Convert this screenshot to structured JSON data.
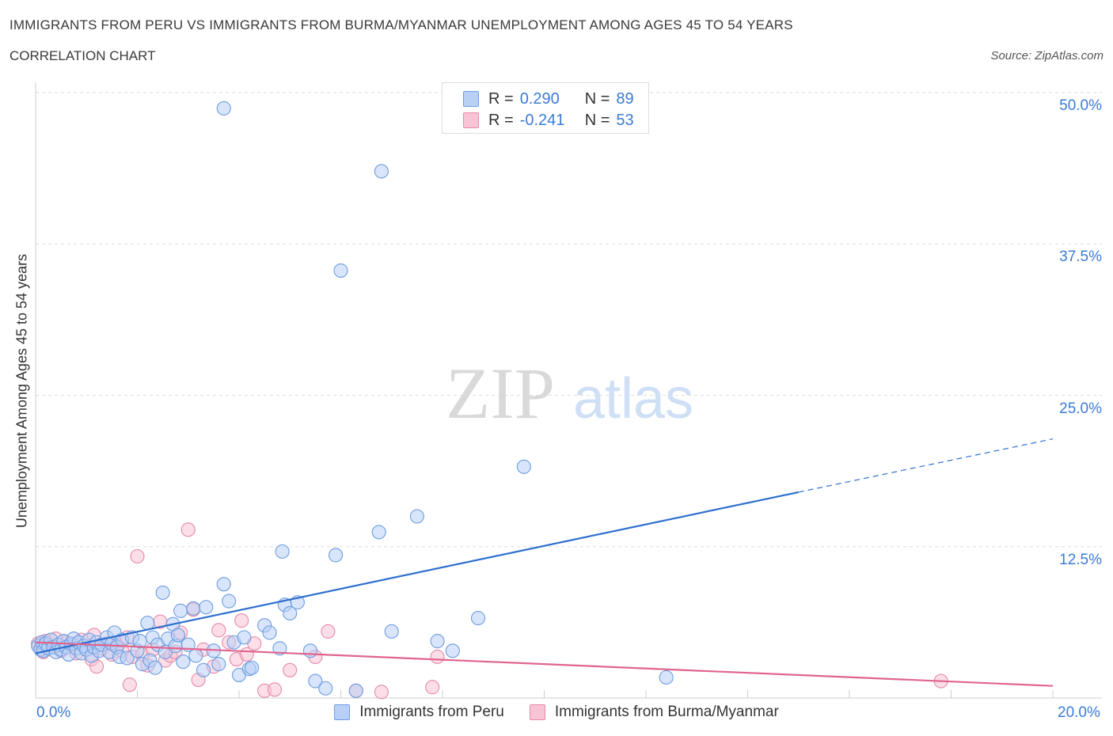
{
  "title": "IMMIGRANTS FROM PERU VS IMMIGRANTS FROM BURMA/MYANMAR UNEMPLOYMENT AMONG AGES 45 TO 54 YEARS",
  "subtitle": "CORRELATION CHART",
  "source": "Source: ZipAtlas.com",
  "watermark": {
    "zip": "ZIP",
    "atlas": "atlas"
  },
  "colors": {
    "peru_fill": "#b8d0f5",
    "peru_stroke": "#6d9de0",
    "peru_line": "#2e6fcf",
    "burma_fill": "#f8c3d4",
    "burma_stroke": "#e68aaa",
    "burma_line": "#e0648e",
    "axis_label": "#3a7bd5",
    "grid": "#dddddd"
  },
  "legend": [
    {
      "r_label": "R =",
      "r_value": "0.290",
      "n_label": "N =",
      "n_value": "89"
    },
    {
      "r_label": "R =",
      "r_value": "-0.241",
      "n_label": "N =",
      "n_value": "53"
    }
  ],
  "chart_data": {
    "type": "scatter",
    "xlabel": "",
    "ylabel": "Unemployment Among Ages 45 to 54 years",
    "xlim": [
      0,
      20
    ],
    "ylim": [
      0,
      50
    ],
    "x_tick_labels": [
      "0.0%",
      "20.0%"
    ],
    "y_ticks": [
      12.5,
      25.0,
      37.5,
      50.0
    ],
    "y_tick_labels": [
      "12.5%",
      "25.0%",
      "37.5%",
      "50.0%"
    ],
    "grid": true,
    "legend_position": "top-center",
    "series": [
      {
        "name": "Immigrants from Peru",
        "points": [
          [
            0.05,
            4.3
          ],
          [
            0.1,
            4.0
          ],
          [
            0.12,
            4.6
          ],
          [
            0.15,
            3.9
          ],
          [
            0.2,
            4.5
          ],
          [
            0.25,
            4.1
          ],
          [
            0.3,
            4.8
          ],
          [
            0.35,
            4.2
          ],
          [
            0.4,
            3.8
          ],
          [
            0.45,
            4.4
          ],
          [
            0.5,
            4.0
          ],
          [
            0.55,
            4.7
          ],
          [
            0.6,
            4.2
          ],
          [
            0.65,
            3.6
          ],
          [
            0.7,
            4.5
          ],
          [
            0.75,
            4.9
          ],
          [
            0.8,
            4.1
          ],
          [
            0.85,
            4.6
          ],
          [
            0.9,
            3.7
          ],
          [
            0.95,
            4.3
          ],
          [
            1.0,
            4.0
          ],
          [
            1.05,
            4.8
          ],
          [
            1.1,
            3.5
          ],
          [
            1.15,
            4.2
          ],
          [
            1.2,
            4.6
          ],
          [
            1.25,
            3.9
          ],
          [
            1.3,
            4.4
          ],
          [
            1.4,
            5.0
          ],
          [
            1.45,
            3.8
          ],
          [
            1.5,
            4.5
          ],
          [
            1.55,
            5.4
          ],
          [
            1.6,
            4.2
          ],
          [
            1.65,
            3.4
          ],
          [
            1.7,
            4.8
          ],
          [
            1.8,
            3.3
          ],
          [
            1.9,
            5.0
          ],
          [
            2.0,
            3.9
          ],
          [
            2.05,
            4.7
          ],
          [
            2.1,
            2.8
          ],
          [
            2.2,
            6.2
          ],
          [
            2.25,
            3.1
          ],
          [
            2.3,
            5.0
          ],
          [
            2.35,
            2.5
          ],
          [
            2.4,
            4.4
          ],
          [
            2.5,
            8.7
          ],
          [
            2.55,
            3.8
          ],
          [
            2.6,
            4.9
          ],
          [
            2.7,
            6.1
          ],
          [
            2.75,
            4.3
          ],
          [
            2.8,
            5.2
          ],
          [
            2.85,
            7.2
          ],
          [
            2.9,
            3.0
          ],
          [
            3.0,
            4.4
          ],
          [
            3.1,
            7.4
          ],
          [
            3.15,
            3.5
          ],
          [
            3.3,
            2.3
          ],
          [
            3.35,
            7.5
          ],
          [
            3.5,
            3.9
          ],
          [
            3.6,
            2.8
          ],
          [
            3.7,
            9.4
          ],
          [
            3.8,
            8.0
          ],
          [
            3.9,
            4.6
          ],
          [
            4.0,
            1.9
          ],
          [
            4.1,
            5.0
          ],
          [
            4.2,
            2.4
          ],
          [
            4.25,
            2.5
          ],
          [
            4.5,
            6.0
          ],
          [
            4.6,
            5.4
          ],
          [
            4.8,
            4.1
          ],
          [
            4.85,
            12.1
          ],
          [
            4.9,
            7.7
          ],
          [
            5.0,
            7.0
          ],
          [
            5.15,
            7.9
          ],
          [
            5.4,
            3.9
          ],
          [
            5.5,
            1.4
          ],
          [
            5.7,
            0.8
          ],
          [
            5.9,
            11.8
          ],
          [
            6.0,
            35.3
          ],
          [
            6.3,
            0.6
          ],
          [
            6.75,
            13.7
          ],
          [
            6.8,
            43.5
          ],
          [
            7.0,
            5.5
          ],
          [
            7.5,
            15.0
          ],
          [
            7.9,
            4.7
          ],
          [
            8.2,
            3.9
          ],
          [
            8.7,
            6.6
          ],
          [
            9.6,
            19.1
          ],
          [
            12.4,
            1.7
          ],
          [
            3.7,
            48.7
          ]
        ]
      },
      {
        "name": "Immigrants from Burma/Myanmar",
        "points": [
          [
            0.05,
            4.5
          ],
          [
            0.1,
            4.1
          ],
          [
            0.15,
            3.8
          ],
          [
            0.2,
            4.7
          ],
          [
            0.3,
            4.2
          ],
          [
            0.4,
            4.9
          ],
          [
            0.5,
            3.9
          ],
          [
            0.6,
            4.6
          ],
          [
            0.7,
            4.4
          ],
          [
            0.8,
            3.7
          ],
          [
            0.9,
            4.8
          ],
          [
            1.0,
            4.0
          ],
          [
            1.1,
            3.2
          ],
          [
            1.15,
            5.2
          ],
          [
            1.2,
            2.6
          ],
          [
            1.3,
            4.1
          ],
          [
            1.4,
            4.5
          ],
          [
            1.5,
            3.6
          ],
          [
            1.6,
            4.3
          ],
          [
            1.7,
            3.9
          ],
          [
            1.8,
            5.0
          ],
          [
            1.85,
            1.1
          ],
          [
            1.9,
            3.4
          ],
          [
            2.0,
            11.7
          ],
          [
            2.1,
            3.6
          ],
          [
            2.2,
            2.7
          ],
          [
            2.3,
            4.0
          ],
          [
            2.45,
            6.3
          ],
          [
            2.55,
            3.1
          ],
          [
            2.65,
            3.5
          ],
          [
            2.75,
            3.8
          ],
          [
            2.85,
            5.4
          ],
          [
            3.0,
            13.9
          ],
          [
            3.1,
            7.3
          ],
          [
            3.2,
            1.5
          ],
          [
            3.3,
            4.0
          ],
          [
            3.5,
            2.6
          ],
          [
            3.6,
            5.6
          ],
          [
            3.8,
            4.6
          ],
          [
            3.95,
            3.2
          ],
          [
            4.05,
            6.4
          ],
          [
            4.15,
            3.6
          ],
          [
            4.3,
            4.5
          ],
          [
            4.5,
            0.6
          ],
          [
            4.7,
            0.7
          ],
          [
            5.0,
            2.3
          ],
          [
            5.5,
            3.4
          ],
          [
            5.75,
            5.5
          ],
          [
            6.3,
            0.6
          ],
          [
            6.8,
            0.5
          ],
          [
            7.8,
            0.9
          ],
          [
            7.9,
            3.4
          ],
          [
            17.8,
            1.4
          ]
        ]
      }
    ],
    "trend_lines": [
      {
        "series": "Immigrants from Peru",
        "start": [
          0,
          3.7
        ],
        "solid_end": [
          15.0,
          17.0
        ],
        "dashed_end": [
          20.0,
          21.4
        ]
      },
      {
        "series": "Immigrants from Burma/Myanmar",
        "start": [
          0,
          4.6
        ],
        "end": [
          20.0,
          1.0
        ]
      }
    ]
  }
}
